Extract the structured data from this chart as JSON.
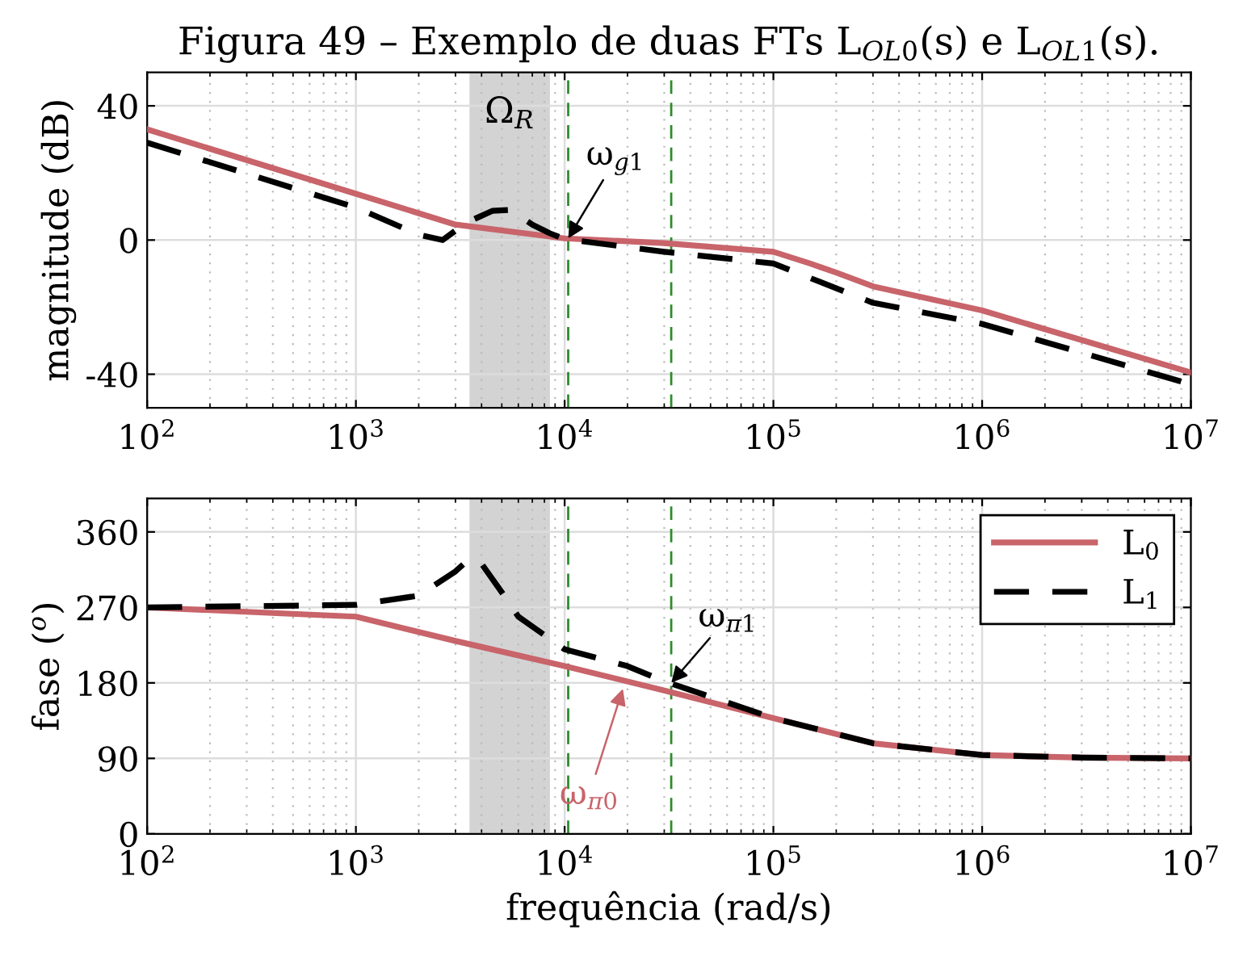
{
  "chart_data": [
    {
      "type": "line",
      "title": "Figura 49 – Exemplo de duas FTs L$_{OL0}$(s) e L$_{OL1}$(s).",
      "ylabel": "magnitude (dB)",
      "log": "x",
      "grid": true,
      "xlim": [
        100,
        10000000
      ],
      "xticks": [
        {
          "value": 100,
          "label": "10$^{2}$"
        },
        {
          "value": 1000,
          "label": "10$^{3}$"
        },
        {
          "value": 10000,
          "label": "10$^{4}$"
        },
        {
          "value": 100000,
          "label": "10$^{5}$"
        },
        {
          "value": 1000000,
          "label": "10$^{6}$"
        },
        {
          "value": 10000000,
          "label": "10$^{7}$"
        }
      ],
      "ylim": [
        -50,
        50
      ],
      "yticks": [
        -40,
        0,
        40
      ],
      "series": [
        {
          "color": "#c8646a",
          "line_style": "solid",
          "x": [
            100,
            1000,
            3000,
            10000,
            30000,
            100000,
            150000,
            200000,
            300000,
            1000000,
            10000000
          ],
          "values": [
            33,
            13.8,
            4.6,
            0.5,
            -0.9,
            -3.5,
            -7,
            -9.7,
            -13.8,
            -21,
            -39.5
          ]
        },
        {
          "color": "#000000",
          "line_style": "dashed",
          "x": [
            100,
            1000,
            2000,
            2600,
            3000,
            3500,
            4500,
            5500,
            7000,
            8500,
            10000,
            30000,
            100000,
            300000,
            1000000,
            10000000
          ],
          "values": [
            29,
            9.7,
            1.6,
            0,
            2.8,
            5.6,
            8.7,
            9,
            4.6,
            2,
            0.3,
            -3.5,
            -7,
            -18.7,
            -25,
            -43
          ]
        }
      ],
      "ref_lines": [
        {
          "axis": "x",
          "value": 10400,
          "color": "#2e8b2e",
          "line_style": "dashed"
        },
        {
          "axis": "x",
          "value": 32400,
          "color": "#2e8b2e",
          "line_style": "dashed"
        }
      ],
      "bands": [
        {
          "axis": "x",
          "from": 3500,
          "to": 8500,
          "label": "Ω$_{R}$",
          "color": "#d3d3d3"
        }
      ],
      "annotations": [
        {
          "text": "ω$_{g1}$",
          "x": 10400,
          "y": 0.5
        }
      ]
    },
    {
      "type": "line",
      "xlabel": "frequência (rad/s)",
      "ylabel": "fase ($^{o}$)",
      "log": "x",
      "grid": true,
      "legend": "top right",
      "xlim": [
        100,
        10000000
      ],
      "xticks": [
        {
          "value": 100,
          "label": "10$^{2}$"
        },
        {
          "value": 1000,
          "label": "10$^{3}$"
        },
        {
          "value": 10000,
          "label": "10$^{4}$"
        },
        {
          "value": 100000,
          "label": "10$^{5}$"
        },
        {
          "value": 1000000,
          "label": "10$^{6}$"
        },
        {
          "value": 10000000,
          "label": "10$^{7}$"
        }
      ],
      "ylim": [
        0,
        400
      ],
      "yticks": [
        0,
        90,
        180,
        270,
        360
      ],
      "series": [
        {
          "name": "L$_{0}$",
          "color": "#c8646a",
          "line_style": "solid",
          "x": [
            100,
            1000,
            3000,
            10000,
            30000,
            100000,
            300000,
            1000000,
            3000000,
            10000000
          ],
          "values": [
            270,
            259,
            230,
            200,
            171,
            138,
            108,
            94,
            91,
            90
          ]
        },
        {
          "name": "L$_{1}$",
          "color": "#000000",
          "line_style": "dashed",
          "x": [
            100,
            1000,
            2000,
            3000,
            3500,
            4000,
            5000,
            6000,
            8000,
            10000,
            20000,
            30000,
            100000,
            300000,
            1000000,
            3000000,
            10000000
          ],
          "values": [
            270,
            273,
            284,
            313,
            328,
            322,
            288,
            259,
            237,
            220,
            200,
            182,
            138,
            108,
            94,
            91,
            90
          ]
        }
      ],
      "ref_lines": [
        {
          "axis": "x",
          "value": 10400,
          "color": "#2e8b2e",
          "line_style": "dashed"
        },
        {
          "axis": "x",
          "value": 32400,
          "color": "#2e8b2e",
          "line_style": "dashed"
        }
      ],
      "bands": [
        {
          "axis": "x",
          "from": 3500,
          "to": 8500,
          "color": "#d3d3d3"
        }
      ],
      "annotations": [
        {
          "text": "ω$_{π1}$",
          "x": 32400,
          "y": 180
        },
        {
          "text": "ω$_{π0}$",
          "x": 19000,
          "y": 173
        }
      ]
    }
  ]
}
